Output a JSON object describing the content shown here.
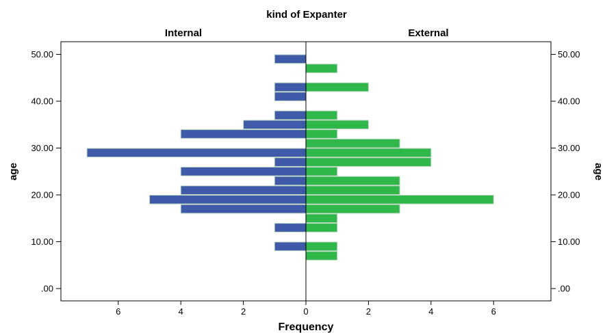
{
  "chart_data": {
    "type": "bar",
    "subtype": "back-to-back histogram (population pyramid)",
    "title": "kind of Expanter",
    "xlabel": "Frequency",
    "ylabel": "age",
    "ylim": [
      0,
      52
    ],
    "y_ticks": [
      ".00",
      "10.00",
      "20.00",
      "30.00",
      "40.00",
      "50.00"
    ],
    "x_ticks": [
      "6",
      "4",
      "2",
      "0",
      "2",
      "4",
      "6"
    ],
    "xlim": [
      0,
      7.8
    ],
    "bin_width": 2,
    "panels": [
      {
        "name": "Internal",
        "color": "#3f5aa8",
        "bins": [
          {
            "age": 9,
            "value": 1
          },
          {
            "age": 13,
            "value": 1
          },
          {
            "age": 17,
            "value": 4
          },
          {
            "age": 19,
            "value": 5
          },
          {
            "age": 21,
            "value": 4
          },
          {
            "age": 23,
            "value": 1
          },
          {
            "age": 25,
            "value": 4
          },
          {
            "age": 27,
            "value": 1
          },
          {
            "age": 29,
            "value": 7
          },
          {
            "age": 33,
            "value": 4
          },
          {
            "age": 35,
            "value": 2
          },
          {
            "age": 37,
            "value": 1
          },
          {
            "age": 41,
            "value": 1
          },
          {
            "age": 43,
            "value": 1
          },
          {
            "age": 49,
            "value": 1
          }
        ]
      },
      {
        "name": "External",
        "color": "#2fb74a",
        "bins": [
          {
            "age": 7,
            "value": 1
          },
          {
            "age": 9,
            "value": 1
          },
          {
            "age": 13,
            "value": 1
          },
          {
            "age": 15,
            "value": 1
          },
          {
            "age": 17,
            "value": 3
          },
          {
            "age": 19,
            "value": 6
          },
          {
            "age": 21,
            "value": 3
          },
          {
            "age": 23,
            "value": 3
          },
          {
            "age": 25,
            "value": 1
          },
          {
            "age": 27,
            "value": 4
          },
          {
            "age": 29,
            "value": 4
          },
          {
            "age": 31,
            "value": 3
          },
          {
            "age": 33,
            "value": 1
          },
          {
            "age": 35,
            "value": 2
          },
          {
            "age": 37,
            "value": 1
          },
          {
            "age": 43,
            "value": 2
          },
          {
            "age": 47,
            "value": 1
          }
        ]
      }
    ],
    "grid": false,
    "legend": "none"
  }
}
